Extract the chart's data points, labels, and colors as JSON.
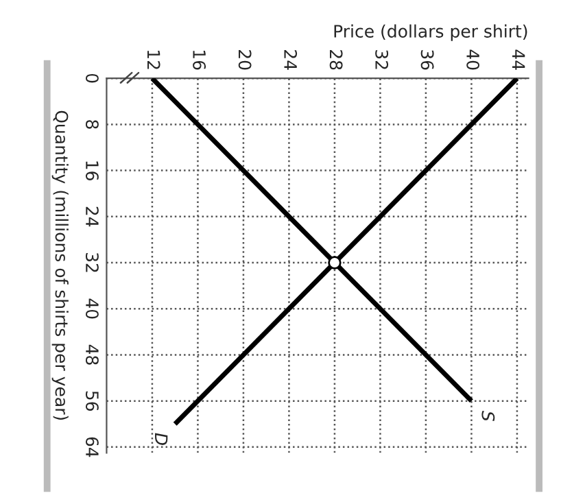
{
  "chart_data": {
    "type": "line",
    "xlabel": "Price (dollars per shirt)",
    "ylabel": "Quantity (millions of shirts per year)",
    "xlim": [
      8,
      45
    ],
    "xticks": [
      12,
      16,
      20,
      24,
      28,
      32,
      36,
      40,
      44
    ],
    "ylim": [
      65,
      0
    ],
    "yticks": [
      0,
      8,
      16,
      24,
      32,
      40,
      48,
      56,
      64
    ],
    "grid": true,
    "line_style": "solid",
    "marker": "none",
    "series": [
      {
        "name": "S",
        "color": "#000000",
        "x": [
          12,
          28,
          40
        ],
        "values": [
          0,
          32,
          56
        ]
      },
      {
        "name": "D",
        "color": "#000000",
        "x": [
          44,
          28,
          14
        ],
        "values": [
          0,
          32,
          60
        ]
      },
      {
        "type": "scatter",
        "marker": "circle",
        "color": "#ffffff",
        "x": [
          28
        ],
        "values": [
          32
        ]
      }
    ]
  }
}
